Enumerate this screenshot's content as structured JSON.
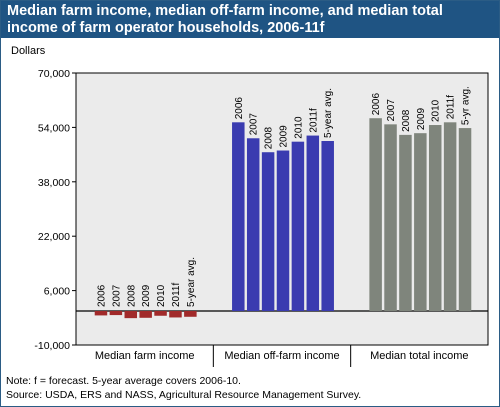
{
  "header": {
    "title_line1": "Median farm income, median off-farm income, and median total",
    "title_line2": "income of farm operator households, 2006-11f"
  },
  "chart_data": {
    "type": "bar",
    "ylabel": "Dollars",
    "ylim": [
      -10000,
      70000
    ],
    "yticks": [
      -10000,
      6000,
      22000,
      38000,
      54000,
      70000
    ],
    "ytick_labels": [
      "-10,000",
      "6,000",
      "22,000",
      "38,000",
      "54,000",
      "70,000"
    ],
    "grid": false,
    "groups": [
      {
        "name": "Median farm income",
        "color": "#a12a2a",
        "categories": [
          "2006",
          "2007",
          "2008",
          "2009",
          "2010",
          "2011f",
          "5-year avg."
        ],
        "values": [
          -1300,
          -1200,
          -2100,
          -2000,
          -1400,
          -1900,
          -1700
        ]
      },
      {
        "name": "Median off-farm income",
        "color": "#3a3bb0",
        "categories": [
          "2006",
          "2007",
          "2008",
          "2009",
          "2010",
          "2011f",
          "5-year avg."
        ],
        "values": [
          55500,
          50800,
          46700,
          47200,
          49800,
          51600,
          50000
        ]
      },
      {
        "name": "Median total income",
        "color": "#7f857c",
        "categories": [
          "2006",
          "2007",
          "2008",
          "2009",
          "2010",
          "2011f",
          "5-yr avg."
        ],
        "values": [
          56700,
          54900,
          51800,
          52300,
          54700,
          55500,
          53800
        ]
      }
    ]
  },
  "footer": {
    "note": "Note: f = forecast. 5-year average covers 2006-10.",
    "source": "Source: USDA, ERS and NASS, Agricultural Resource Management Survey."
  }
}
